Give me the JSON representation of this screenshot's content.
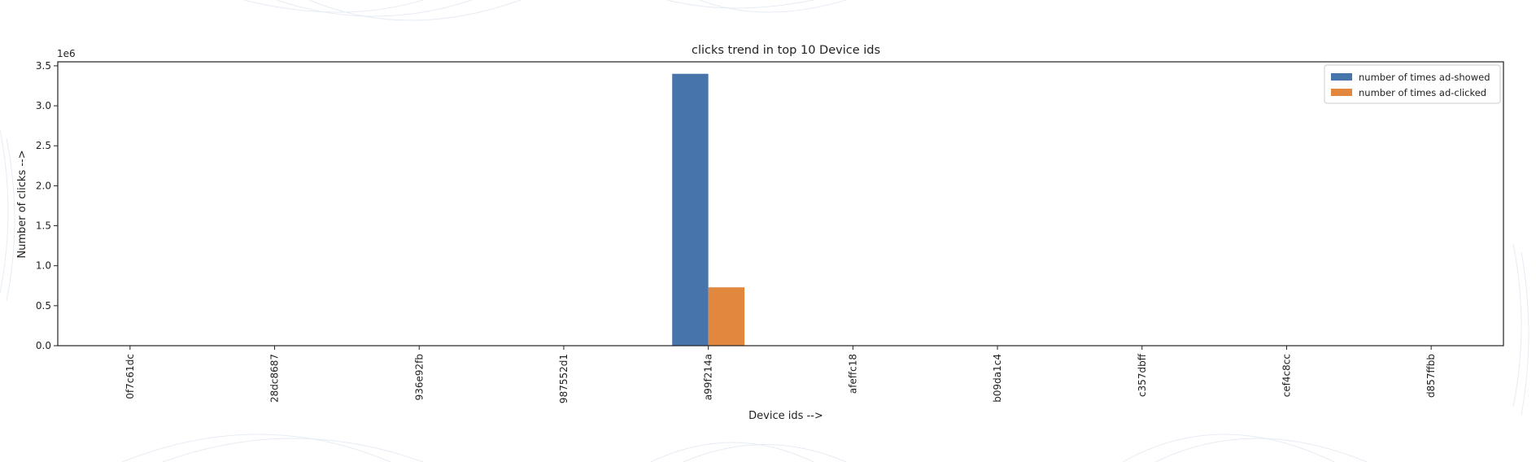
{
  "chart_data": {
    "type": "bar",
    "title": "clicks trend in top 10 Device ids",
    "xlabel": "Device ids -->",
    "ylabel": "Number of clicks -->",
    "y_offset_label": "1e6",
    "ylim": [
      0,
      3.55
    ],
    "yticks": [
      "0.0",
      "0.5",
      "1.0",
      "1.5",
      "2.0",
      "2.5",
      "3.0",
      "3.5"
    ],
    "y_scale": 1000000,
    "categories": [
      "0f7c61dc",
      "28dc8687",
      "936e92fb",
      "987552d1",
      "a99f214a",
      "afeffc18",
      "b09da1c4",
      "c357dbff",
      "cef4c8cc",
      "d857ffbb"
    ],
    "series": [
      {
        "name": "number of times ad-showed",
        "color": "#4674ab",
        "values": [
          0,
          0,
          0,
          0,
          3.4,
          0,
          0,
          0,
          0,
          0
        ]
      },
      {
        "name": "number of times ad-clicked",
        "color": "#e1873e",
        "values": [
          0,
          0,
          0,
          0,
          0.73,
          0,
          0,
          0,
          0,
          0
        ]
      }
    ],
    "legend_position": "top-right",
    "grid": false
  }
}
